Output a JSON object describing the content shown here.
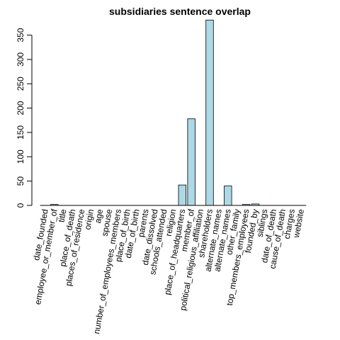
{
  "chart_data": {
    "type": "bar",
    "title": "subsidiaries sentence overlap",
    "xlabel": "",
    "ylabel": "",
    "ylim": [
      0,
      380
    ],
    "yticks": [
      0,
      50,
      100,
      150,
      200,
      250,
      300,
      350
    ],
    "grid": false,
    "bar_color": "#add8e6",
    "categories": [
      "date_founded",
      "employee_or_member_of",
      "title",
      "place_of_death",
      "places_of_residence",
      "origin",
      "age",
      "spouse",
      "number_of_employees_members",
      "place_of_birth",
      "date_of_birth",
      "parents",
      "date_dissolved",
      "schools_attended",
      "religion",
      "place_of_headquarters",
      "member_of",
      "political_religious_affiliation",
      "shareholders",
      "alternate_names",
      "alternate_names",
      "other_family",
      "top_members_employees",
      "founded_by",
      "siblings",
      "date_of_death",
      "cause_of_death",
      "charges",
      "website"
    ],
    "values": [
      0,
      2,
      0,
      0,
      0,
      0,
      0,
      0,
      0,
      0,
      0,
      0,
      0,
      0,
      0,
      42,
      178,
      0,
      381,
      0,
      40,
      0,
      2,
      3,
      0,
      0,
      0,
      0,
      0
    ]
  }
}
